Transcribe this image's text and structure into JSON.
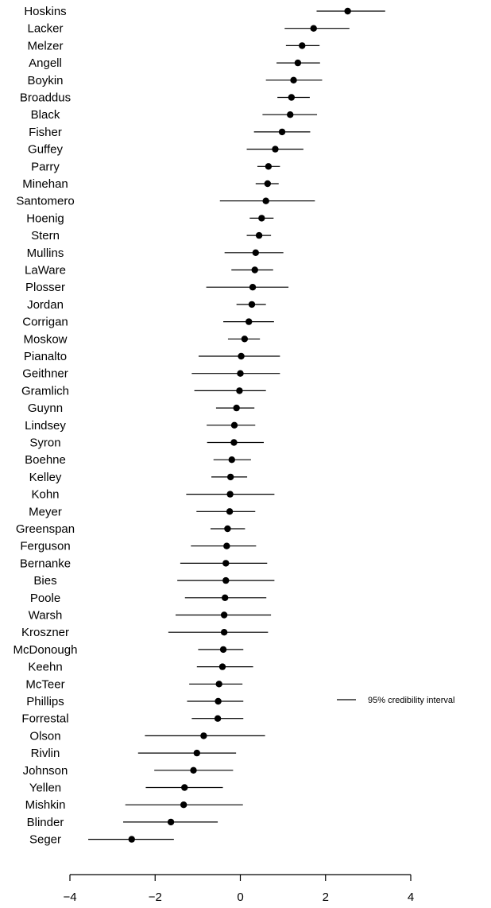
{
  "chart_data": {
    "type": "scatter",
    "subtype": "forest-plot",
    "title": "",
    "xlabel": "",
    "ylabel": "",
    "xlim": [
      -4,
      4
    ],
    "xticks": [
      -4,
      -2,
      0,
      2,
      4
    ],
    "tick_labels": [
      "−4",
      "−2",
      "0",
      "2",
      "4"
    ],
    "grid": false,
    "legend": {
      "placement": "right",
      "entries": [
        "95% credibility interval"
      ]
    },
    "names": [
      "Hoskins",
      "Lacker",
      "Melzer",
      "Angell",
      "Boykin",
      "Broaddus",
      "Black",
      "Fisher",
      "Guffey",
      "Parry",
      "Minehan",
      "Santomero",
      "Hoenig",
      "Stern",
      "Mullins",
      "LaWare",
      "Plosser",
      "Jordan",
      "Corrigan",
      "Moskow",
      "Pianalto",
      "Geithner",
      "Gramlich",
      "Guynn",
      "Lindsey",
      "Syron",
      "Boehne",
      "Kelley",
      "Kohn",
      "Meyer",
      "Greenspan",
      "Ferguson",
      "Bernanke",
      "Bies",
      "Poole",
      "Warsh",
      "Kroszner",
      "McDonough",
      "Keehn",
      "McTeer",
      "Phillips",
      "Forrestal",
      "Olson",
      "Rivlin",
      "Johnson",
      "Yellen",
      "Mishkin",
      "Blinder",
      "Seger"
    ],
    "estimates": [
      2.52,
      1.72,
      1.45,
      1.35,
      1.25,
      1.2,
      1.17,
      0.98,
      0.82,
      0.66,
      0.64,
      0.6,
      0.5,
      0.44,
      0.36,
      0.34,
      0.29,
      0.27,
      0.2,
      0.1,
      0.02,
      0.0,
      -0.02,
      -0.09,
      -0.14,
      -0.15,
      -0.2,
      -0.23,
      -0.24,
      -0.25,
      -0.3,
      -0.32,
      -0.34,
      -0.34,
      -0.36,
      -0.38,
      -0.38,
      -0.4,
      -0.42,
      -0.5,
      -0.52,
      -0.53,
      -0.86,
      -1.02,
      -1.1,
      -1.31,
      -1.33,
      -1.63,
      -2.55
    ],
    "lower": [
      1.79,
      1.04,
      1.07,
      0.85,
      0.6,
      0.87,
      0.52,
      0.32,
      0.15,
      0.4,
      0.36,
      -0.48,
      0.22,
      0.15,
      -0.37,
      -0.21,
      -0.8,
      -0.09,
      -0.4,
      -0.29,
      -0.98,
      -1.14,
      -1.08,
      -0.57,
      -0.79,
      -0.78,
      -0.63,
      -0.68,
      -1.27,
      -1.03,
      -0.7,
      -1.16,
      -1.41,
      -1.48,
      -1.3,
      -1.52,
      -1.69,
      -0.99,
      -1.02,
      -1.2,
      -1.25,
      -1.14,
      -2.24,
      -2.4,
      -2.02,
      -2.22,
      -2.7,
      -2.75,
      -3.57
    ],
    "upper": [
      3.4,
      2.56,
      1.86,
      1.87,
      1.92,
      1.63,
      1.8,
      1.64,
      1.48,
      0.93,
      0.9,
      1.75,
      0.78,
      0.72,
      1.01,
      0.77,
      1.13,
      0.6,
      0.79,
      0.46,
      0.93,
      0.93,
      0.6,
      0.33,
      0.35,
      0.55,
      0.25,
      0.16,
      0.8,
      0.35,
      0.11,
      0.37,
      0.63,
      0.8,
      0.61,
      0.72,
      0.65,
      0.07,
      0.3,
      0.05,
      0.07,
      0.07,
      0.58,
      -0.1,
      -0.17,
      -0.41,
      0.06,
      -0.53,
      -1.56
    ]
  }
}
